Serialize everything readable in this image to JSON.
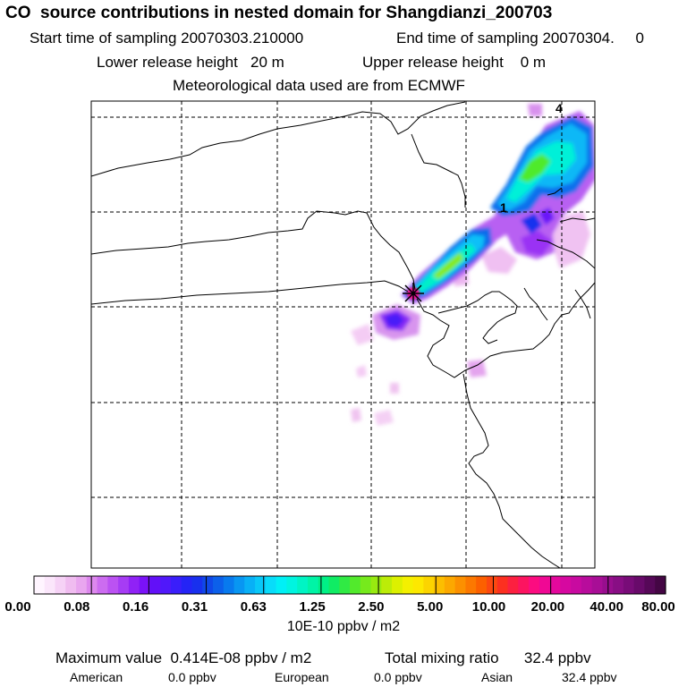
{
  "title": "CO  source contributions in nested domain for Shangdianzi_200703",
  "sampling": {
    "start_label": "Start time of sampling 20070303.210000",
    "end_label": "End time of sampling 20070304.     0"
  },
  "release": {
    "lower_label": "Lower release height   20 m",
    "upper_label": "Upper release height    0 m"
  },
  "met_label": "Meteorological data used are from ECMWF",
  "map": {
    "contour_labels": [
      "4",
      "1"
    ],
    "release_site": "Shangdianzi"
  },
  "colorbar": {
    "tick_labels": [
      "0.00",
      "0.08",
      "0.16",
      "0.31",
      "0.63",
      "1.25",
      "2.50",
      "5.00",
      "10.00",
      "20.00",
      "40.00",
      "80.00"
    ],
    "unit_label": "10E-10 ppbv / m2",
    "colors": [
      "#fff5ff",
      "#fbe6fb",
      "#f6d2f6",
      "#f0bcf0",
      "#e9a6ef",
      "#dd88ee",
      "#cc6cf0",
      "#bb52f2",
      "#a63cf4",
      "#9022f6",
      "#7a12f8",
      "#6210f8",
      "#5018fa",
      "#3a1efa",
      "#2424f6",
      "#1830ee",
      "#1048e8",
      "#0c60ea",
      "#087aee",
      "#0896f2",
      "#08b0f6",
      "#08c8f8",
      "#08dcfa",
      "#00f0f6",
      "#00f4e0",
      "#00f4c4",
      "#00f4a6",
      "#00f086",
      "#10ec64",
      "#30ea44",
      "#52ea2c",
      "#76ea1c",
      "#98ea10",
      "#bcec08",
      "#dcf000",
      "#f4f000",
      "#fde800",
      "#fcd400",
      "#fcbe00",
      "#fca800",
      "#fc9000",
      "#fc7800",
      "#fc6000",
      "#fc4810",
      "#fc3020",
      "#fc2040",
      "#fc1460",
      "#fc0c80",
      "#f00894",
      "#e4089c",
      "#d608a0",
      "#c80aa0",
      "#b80c9c",
      "#a80e96",
      "#980e8e",
      "#880e84",
      "#780c78",
      "#680a6a",
      "#560858",
      "#440644"
    ]
  },
  "stats": {
    "max_label": "Maximum value  0.414E-08 ppbv / m2",
    "total_label": "Total mixing ratio      32.4 ppbv",
    "american_label": "American",
    "american_value": "0.0 ppbv",
    "european_label": "European",
    "european_value": "0.0 ppbv",
    "asian_label": "Asian",
    "asian_value": "32.4 ppbv"
  }
}
